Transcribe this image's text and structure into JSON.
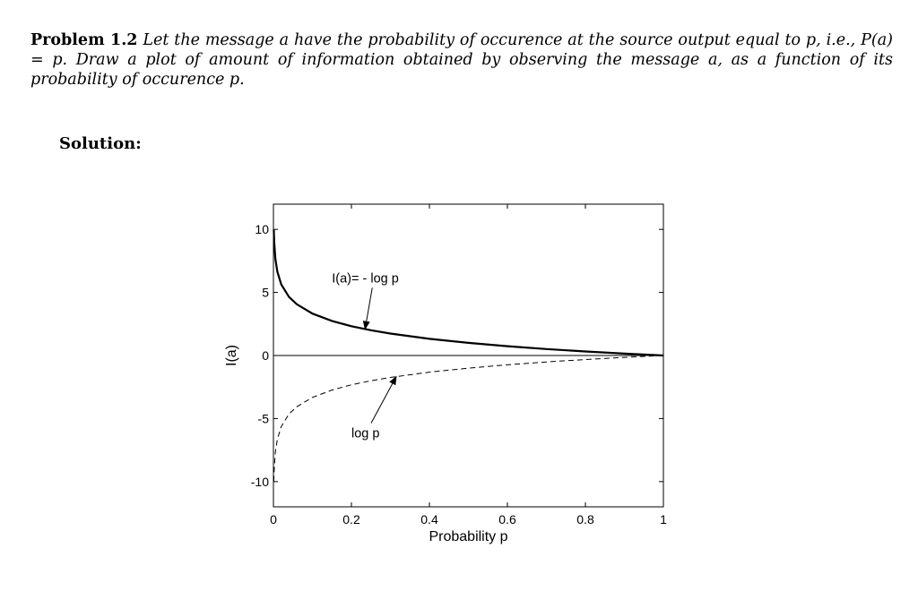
{
  "problem": {
    "heading": "Problem 1.2",
    "text_a": "Let the message a have the probability of occurence at the source output equal to p, i.e., ",
    "text_b": "P(a) = p",
    "text_c": ". Draw a plot of amount of information obtained by observing the message a, as a function of its probability of occurence p."
  },
  "solution_label": "Solution:",
  "chart_data": {
    "type": "line",
    "title": "",
    "xlabel": "Probability p",
    "ylabel": "I(a)",
    "xlim": [
      0,
      1
    ],
    "ylim": [
      -12,
      12
    ],
    "x_ticks": [
      0,
      0.2,
      0.4,
      0.6,
      0.8,
      1
    ],
    "x_tick_labels": [
      "0",
      "0.2",
      "0.4",
      "0.6",
      "0.8",
      "1"
    ],
    "y_ticks": [
      10,
      5,
      0,
      -5,
      -10
    ],
    "y_tick_labels": [
      "10",
      "5",
      "0",
      "-5",
      "-10"
    ],
    "grid": false,
    "legend": "none",
    "zero_line": true,
    "series": [
      {
        "name": "I(a)= - log p",
        "style": "solid",
        "color": "#000000",
        "x": [
          0.001,
          0.002,
          0.005,
          0.01,
          0.02,
          0.04,
          0.06,
          0.1,
          0.15,
          0.2,
          0.25,
          0.3,
          0.4,
          0.5,
          0.6,
          0.7,
          0.8,
          0.9,
          1.0
        ],
        "y": [
          9.97,
          8.97,
          7.64,
          6.64,
          5.64,
          4.64,
          4.06,
          3.32,
          2.74,
          2.32,
          2.0,
          1.74,
          1.32,
          1.0,
          0.74,
          0.51,
          0.32,
          0.15,
          0.0
        ]
      },
      {
        "name": "log p",
        "style": "dashed",
        "color": "#000000",
        "x": [
          0.001,
          0.002,
          0.005,
          0.01,
          0.02,
          0.04,
          0.06,
          0.1,
          0.15,
          0.2,
          0.25,
          0.3,
          0.4,
          0.5,
          0.6,
          0.7,
          0.8,
          0.9,
          1.0
        ],
        "y": [
          -9.97,
          -8.97,
          -7.64,
          -6.64,
          -5.64,
          -4.64,
          -4.06,
          -3.32,
          -2.74,
          -2.32,
          -2.0,
          -1.74,
          -1.32,
          -1.0,
          -0.74,
          -0.51,
          -0.32,
          -0.15,
          0.0
        ]
      }
    ],
    "annotations": [
      {
        "text": "I(a)= - log p",
        "text_at": [
          0.15,
          5.8
        ],
        "arrow_to": [
          0.235,
          2.09
        ]
      },
      {
        "text": "log p",
        "text_at": [
          0.2,
          -6.5
        ],
        "arrow_to": [
          0.315,
          -1.67
        ]
      }
    ]
  }
}
